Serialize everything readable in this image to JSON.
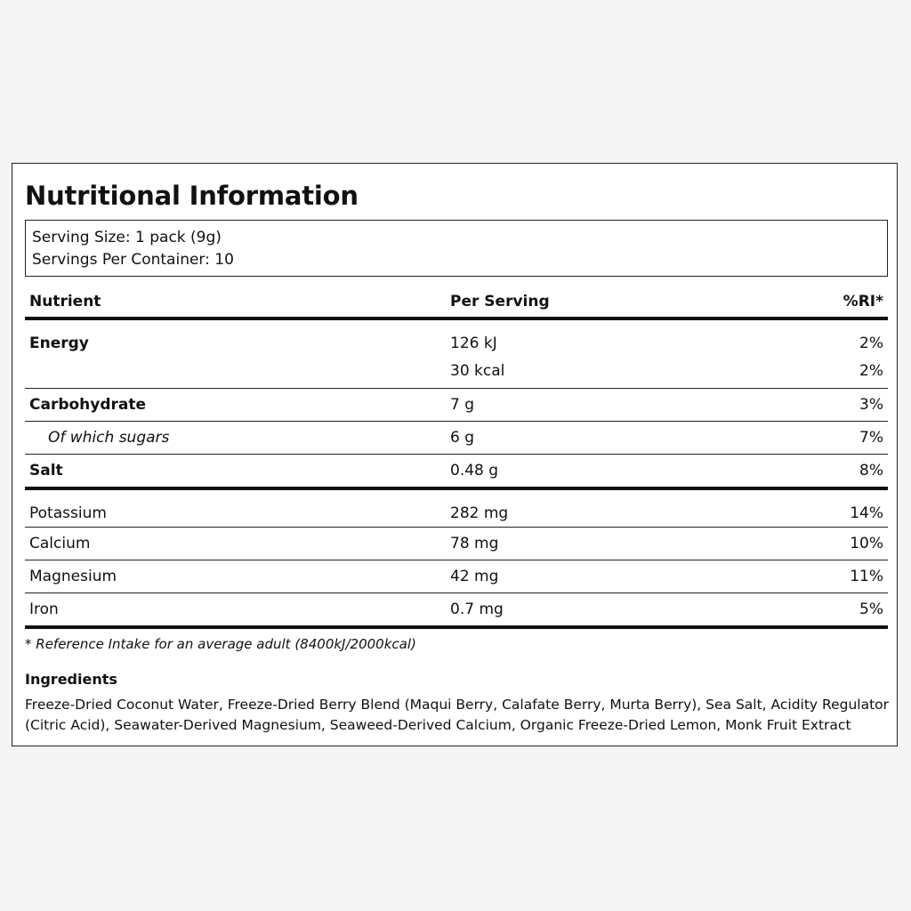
{
  "title": "Nutritional Information",
  "serving": {
    "size": "Serving Size: 1 pack (9g)",
    "per_container": "Servings Per Container: 10"
  },
  "table": {
    "headers": [
      "Nutrient",
      "Per Serving",
      "%RI*"
    ],
    "rows": [
      {
        "nutrient": "Energy",
        "per_serving": "126 kJ",
        "ri": "2%"
      },
      {
        "nutrient": "",
        "per_serving": "30 kcal",
        "ri": "2%"
      },
      {
        "nutrient": "Carbohydrate",
        "per_serving": "7 g",
        "ri": "3%"
      },
      {
        "nutrient": "Of which sugars",
        "per_serving": "6 g",
        "ri": "7%"
      },
      {
        "nutrient": "Salt",
        "per_serving": "0.48 g",
        "ri": "8%"
      },
      {
        "nutrient": "Potassium",
        "per_serving": "282 mg",
        "ri": "14%"
      },
      {
        "nutrient": "Calcium",
        "per_serving": "78 mg",
        "ri": "10%"
      },
      {
        "nutrient": "Magnesium",
        "per_serving": "42 mg",
        "ri": "11%"
      },
      {
        "nutrient": "Iron",
        "per_serving": "0.7 mg",
        "ri": "5%"
      }
    ]
  },
  "footnote": "* Reference Intake for an average adult (8400kJ/2000kcal)",
  "ingredients": {
    "title": "Ingredients",
    "text": "Freeze-Dried Coconut Water, Freeze-Dried Berry Blend (Maqui Berry, Calafate Berry, Murta Berry), Sea Salt, Acidity Regulator (Citric Acid), Seawater-Derived Magnesium, Seaweed-Derived Calcium, Organic Freeze-Dried Lemon, Monk Fruit Extract"
  }
}
